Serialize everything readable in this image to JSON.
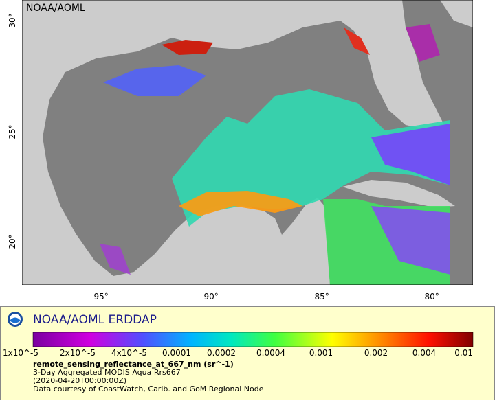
{
  "map": {
    "watermark": "NOAA/AOML",
    "lon_ticks": [
      "-95°",
      "-90°",
      "-85°",
      "-80°"
    ],
    "lat_ticks": [
      "30°",
      "25°",
      "20°"
    ]
  },
  "legend": {
    "brand": "NOAA/AOML ERDDAP",
    "colorbar_ticks": [
      "1x10^-5",
      "2x10^-5",
      "4x10^-5",
      "0.0001",
      "0.0002",
      "0.0004",
      "0.001",
      "0.002",
      "0.004",
      "0.01"
    ],
    "variable": "remote_sensing_reflectance_at_667_nm (sr^-1)",
    "dataset": "3-Day Aggregated MODIS Aqua Rrs667",
    "time": "(2020-04-20T00:00:00Z)",
    "credit": "Data courtesy of CoastWatch, Carib. and GoM Regional Node"
  }
}
